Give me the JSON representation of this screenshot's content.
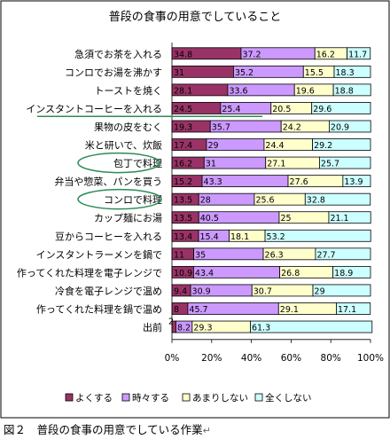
{
  "chart_data": {
    "type": "bar",
    "stacked": "percent",
    "orientation": "horizontal",
    "title": "普段の食事の用意でしていること",
    "xlim": [
      0,
      100
    ],
    "x_ticks": [
      "0%",
      "20%",
      "40%",
      "60%",
      "80%",
      "100%"
    ],
    "grid": false,
    "legend_position": "bottom",
    "categories": [
      "急須でお茶を入れる",
      "コンロでお湯を沸かす",
      "トーストを焼く",
      "インスタントコーヒーを入れる",
      "果物の皮をむく",
      "米と研いで、炊飯",
      "包丁で料理",
      "弁当や惣菜、パンを買う",
      "コンロで料理",
      "カップ麺にお湯",
      "豆からコーヒーを入れる",
      "インスタントラーメンを鍋で",
      "作ってくれた料理を電子レンジで",
      "冷食を電子レンジで温め",
      "作ってくれた料理を鍋で温め",
      "出前"
    ],
    "series": [
      {
        "name": "よくする",
        "color": "#993366",
        "values": [
          34.8,
          31,
          28.1,
          24.5,
          19.3,
          17.4,
          16.2,
          15.2,
          13.5,
          13.5,
          13.4,
          11,
          10.9,
          9.4,
          8,
          2
        ]
      },
      {
        "name": "時々する",
        "color": "#CC99FF",
        "values": [
          37.2,
          35.2,
          33.6,
          25.4,
          35.7,
          29,
          31,
          43.3,
          28,
          40.5,
          15.4,
          35,
          43.4,
          30.9,
          45.7,
          8.2
        ]
      },
      {
        "name": "あまりしない",
        "color": "#FFFFCC",
        "values": [
          16.2,
          15.5,
          19.6,
          20.5,
          24.2,
          24.4,
          27.1,
          27.6,
          25.6,
          25,
          18.1,
          26.3,
          26.8,
          30.7,
          29.1,
          29.3
        ]
      },
      {
        "name": "全くしない",
        "color": "#CCFFFF",
        "values": [
          11.7,
          18.3,
          18.8,
          29.6,
          20.9,
          29.2,
          25.7,
          13.9,
          32.8,
          21.1,
          53.2,
          27.7,
          18.9,
          29,
          17.1,
          61.3
        ]
      }
    ]
  },
  "caption": "図２　普段の食事の用意でしている作業",
  "caption_mark": "↵",
  "highlight_color": "#2E8B57"
}
